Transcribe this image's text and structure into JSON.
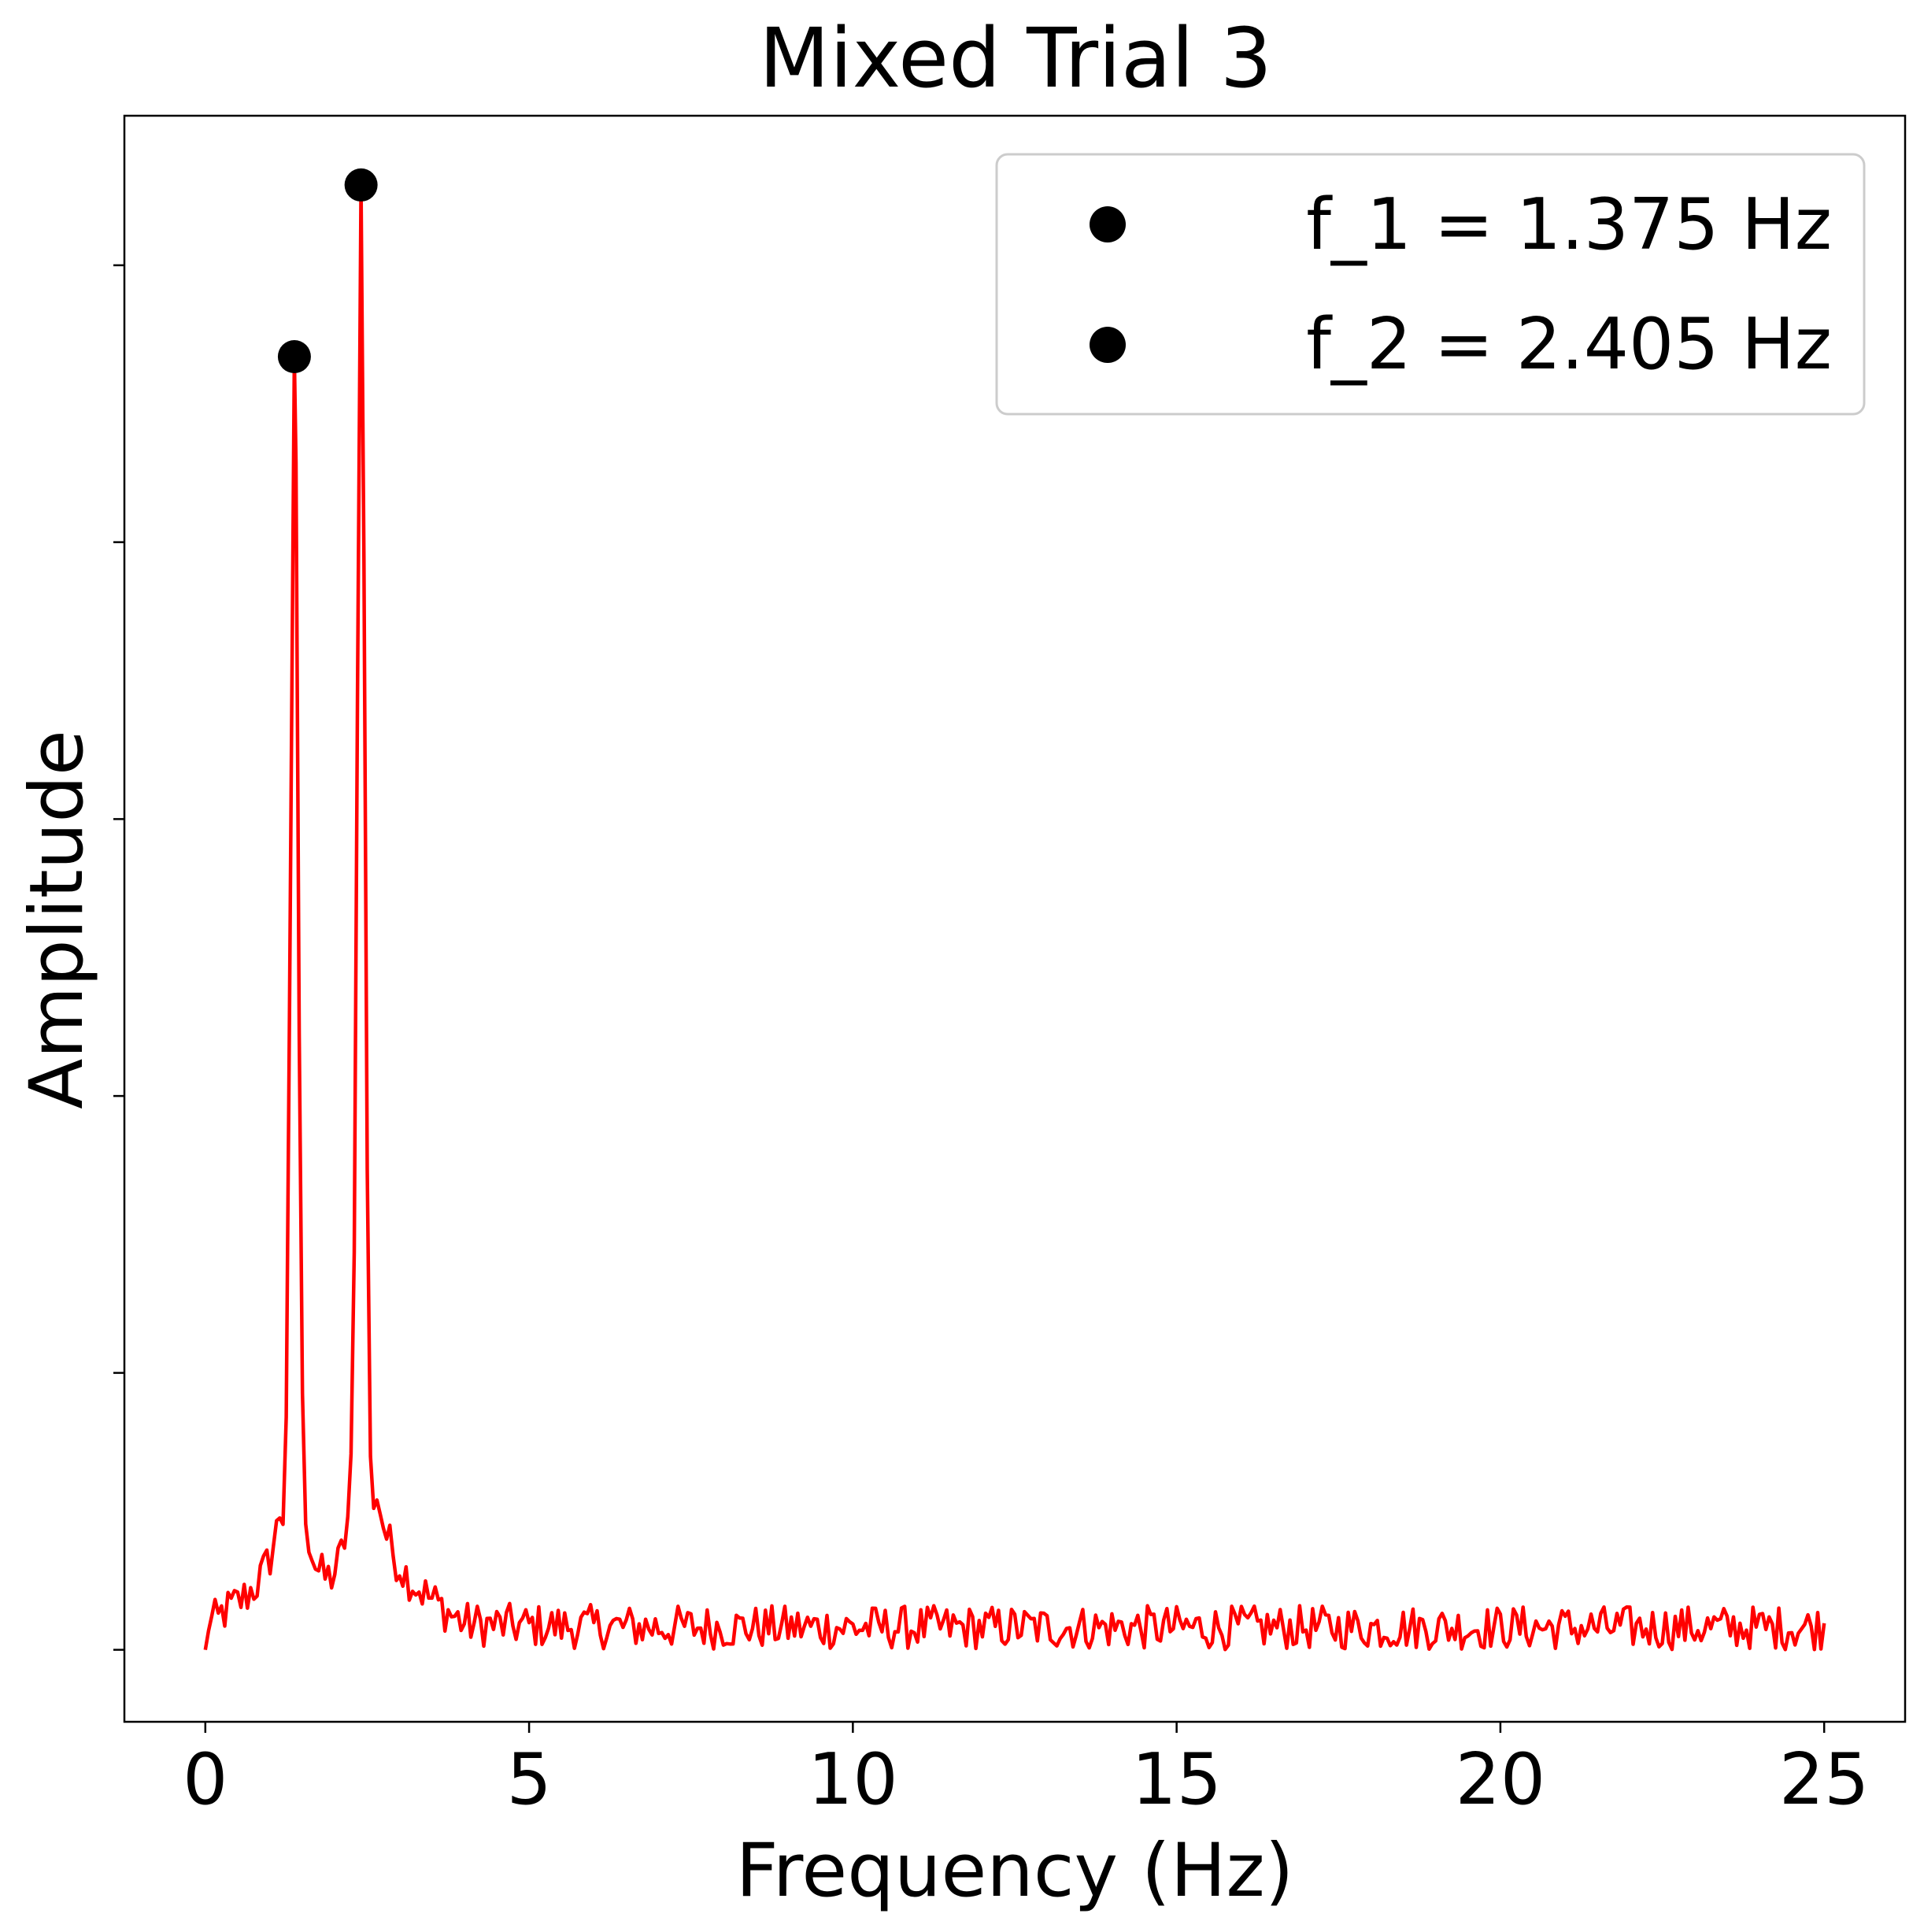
{
  "chart_data": {
    "type": "line",
    "title": "Mixed Trial 3",
    "xlabel": "Frequency (Hz)",
    "ylabel": "Amplitude",
    "xlim": [
      -1.25,
      26.25
    ],
    "ylim": [
      -0.026,
      0.554
    ],
    "x_ticks": [
      0,
      5,
      10,
      15,
      20,
      25
    ],
    "x_tick_labels": [
      "0",
      "5",
      "10",
      "15",
      "20",
      "25"
    ],
    "y_ticks": [
      0.0,
      0.1,
      0.2,
      0.3,
      0.4,
      0.5
    ],
    "y_tick_labels_shown": false,
    "grid": false,
    "legend_position": "upper right",
    "line_color": "#ff0000",
    "marker_color": "#000000",
    "series": [
      {
        "kind": "spectrum",
        "x_start": 0,
        "x_end": 25,
        "x_step": 0.05,
        "baseline": 0.008,
        "noise_range": [
          0.001,
          0.011
        ],
        "peaks": [
          {
            "x": 1.375,
            "y": 0.467
          },
          {
            "x": 2.405,
            "y": 0.529
          }
        ]
      },
      {
        "name": "f_1 = 1.375 Hz",
        "kind": "marker",
        "points": [
          {
            "x": 1.375,
            "y": 0.467
          }
        ]
      },
      {
        "name": "f_2 = 2.405 Hz",
        "kind": "marker",
        "points": [
          {
            "x": 2.405,
            "y": 0.529
          }
        ]
      }
    ],
    "legend": [
      "f_1 = 1.375 Hz",
      "f_2 = 2.405 Hz"
    ]
  }
}
